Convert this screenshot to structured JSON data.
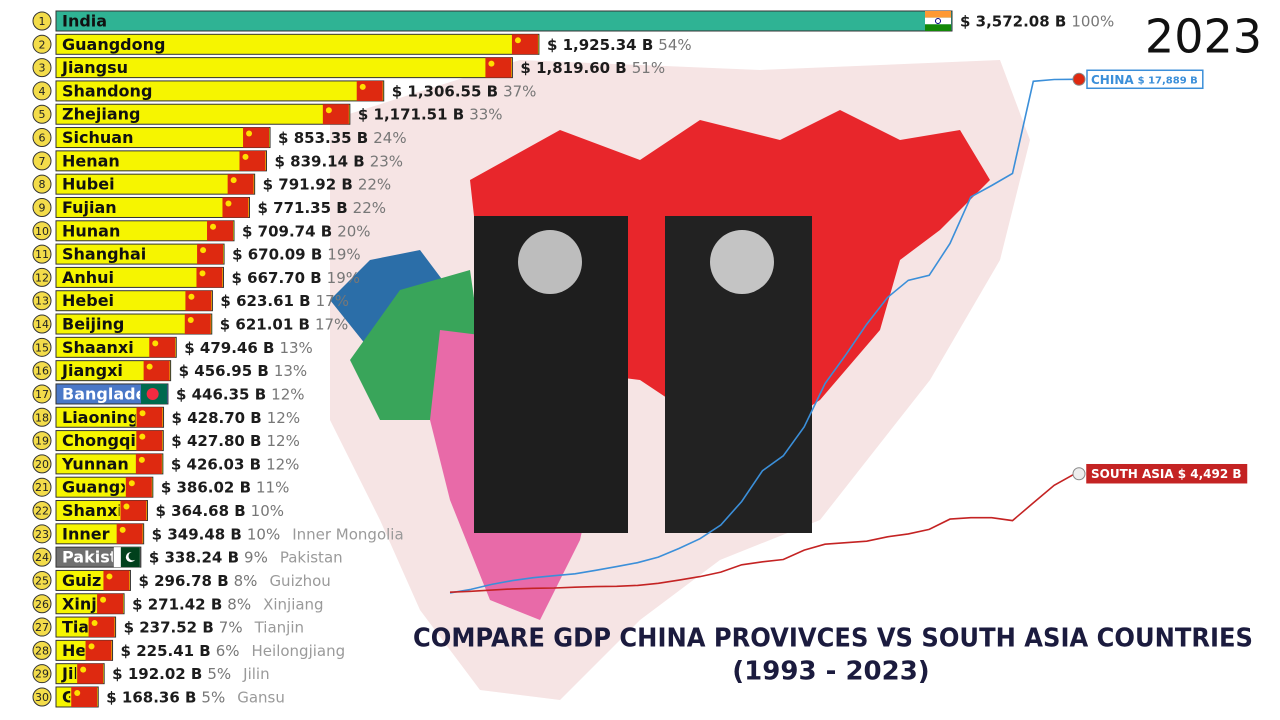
{
  "header": {
    "year": "2023",
    "title": "COMPARE GDP CHINA PROVIVCES VS SOUTH ASIA COUNTRIES",
    "subtitle": "(1993 - 2023)"
  },
  "chart_data": [
    {
      "type": "hbar",
      "ranks": [
        1,
        2,
        3,
        4,
        5,
        6,
        7,
        8,
        9,
        10,
        11,
        12,
        13,
        14,
        15,
        16,
        17,
        18,
        19,
        20,
        21,
        22,
        23,
        24,
        25,
        26,
        27,
        28,
        29,
        30
      ],
      "categories": [
        "India",
        "Guangdong",
        "Jiangsu",
        "Shandong",
        "Zhejiang",
        "Sichuan",
        "Henan",
        "Hubei",
        "Fujian",
        "Hunan",
        "Shanghai",
        "Anhui",
        "Hebei",
        "Beijing",
        "Shaanxi",
        "Jiangxi",
        "Bangladesh",
        "Liaoning",
        "Chongqing",
        "Yunnan",
        "Guangxi",
        "Shanxi",
        "Inner Mongolia",
        "Pakistan",
        "Guizhou",
        "Xinjiang",
        "Tianjin",
        "Heilongjiang",
        "Jilin",
        "Gansu"
      ],
      "values": [
        3572.08,
        1925.34,
        1819.6,
        1306.55,
        1171.51,
        853.35,
        839.14,
        791.92,
        771.35,
        709.74,
        670.09,
        667.7,
        623.61,
        621.01,
        479.46,
        456.95,
        446.35,
        428.7,
        427.8,
        426.03,
        386.02,
        364.68,
        349.48,
        338.24,
        296.78,
        271.42,
        237.52,
        225.41,
        192.02,
        168.36
      ],
      "value_labels": [
        "$ 3,572.08 B",
        "$ 1,925.34 B",
        "$ 1,819.60 B",
        "$ 1,306.55 B",
        "$ 1,171.51 B",
        "$ 853.35 B",
        "$ 839.14 B",
        "$ 791.92 B",
        "$ 771.35 B",
        "$ 709.74 B",
        "$ 670.09 B",
        "$ 667.70 B",
        "$ 623.61 B",
        "$ 621.01 B",
        "$ 479.46 B",
        "$ 456.95 B",
        "$ 446.35 B",
        "$ 428.70 B",
        "$ 427.80 B",
        "$ 426.03 B",
        "$ 386.02 B",
        "$ 364.68 B",
        "$ 349.48 B",
        "$ 338.24 B",
        "$ 296.78 B",
        "$ 271.42 B",
        "$ 237.52 B",
        "$ 225.41 B",
        "$ 192.02 B",
        "$ 168.36 B"
      ],
      "share_labels": [
        "100%",
        "54%",
        "51%",
        "37%",
        "33%",
        "24%",
        "23%",
        "22%",
        "22%",
        "20%",
        "19%",
        "19%",
        "17%",
        "17%",
        "13%",
        "13%",
        "12%",
        "12%",
        "12%",
        "12%",
        "11%",
        "10%",
        "10%",
        "9%",
        "8%",
        "8%",
        "7%",
        "6%",
        "5%",
        "5%"
      ],
      "outside_labels": [
        null,
        null,
        null,
        null,
        null,
        null,
        null,
        null,
        null,
        null,
        null,
        null,
        null,
        null,
        null,
        null,
        null,
        null,
        null,
        null,
        null,
        null,
        "Inner Mongolia",
        "Pakistan",
        "Guizhou",
        "Xinjiang",
        "Tianjin",
        "Heilongjiang",
        "Jilin",
        "Gansu"
      ],
      "colors": [
        "#2fb394",
        "#f6f500",
        "#f6f500",
        "#f6f500",
        "#f6f500",
        "#f6f500",
        "#f6f500",
        "#f6f500",
        "#f6f500",
        "#f6f500",
        "#f6f500",
        "#f6f500",
        "#f6f500",
        "#f6f500",
        "#f6f500",
        "#f6f500",
        "#4a78c8",
        "#f6f500",
        "#f6f500",
        "#f6f500",
        "#f6f500",
        "#f6f500",
        "#f6f500",
        "#707070",
        "#f6f500",
        "#f6f500",
        "#f6f500",
        "#f6f500",
        "#f6f500",
        "#f6f500"
      ],
      "xlim": [
        0,
        3572.08
      ]
    },
    {
      "type": "line",
      "x": [
        1993,
        1994,
        1995,
        1996,
        1997,
        1998,
        1999,
        2000,
        2001,
        2002,
        2003,
        2004,
        2005,
        2006,
        2007,
        2008,
        2009,
        2010,
        2011,
        2012,
        2013,
        2014,
        2015,
        2016,
        2017,
        2018,
        2019,
        2020,
        2021,
        2022,
        2023
      ],
      "xlim": [
        1993,
        2023
      ],
      "ylim": [
        0,
        18000
      ],
      "series": [
        {
          "name": "CHINA",
          "color": "#3b8fd9",
          "end_label": "$ 17,889 B",
          "values": [
            444,
            564,
            734,
            863,
            962,
            1029,
            1094,
            1211,
            1339,
            1471,
            1660,
            1955,
            2286,
            2752,
            3550,
            4594,
            5102,
            6087,
            7552,
            8532,
            9570,
            10476,
            11062,
            11233,
            12310,
            13895,
            14280,
            14688,
            17820,
            17882,
            17889
          ]
        },
        {
          "name": "SOUTH ASIA",
          "color": "#c42323",
          "end_label": "$ 4,492 B",
          "values": [
            470,
            500,
            540,
            580,
            600,
            610,
            640,
            660,
            670,
            700,
            770,
            880,
            1000,
            1150,
            1400,
            1500,
            1580,
            1900,
            2100,
            2150,
            2200,
            2350,
            2450,
            2600,
            2950,
            3000,
            3000,
            2900,
            3500,
            4100,
            4492
          ]
        }
      ]
    }
  ]
}
